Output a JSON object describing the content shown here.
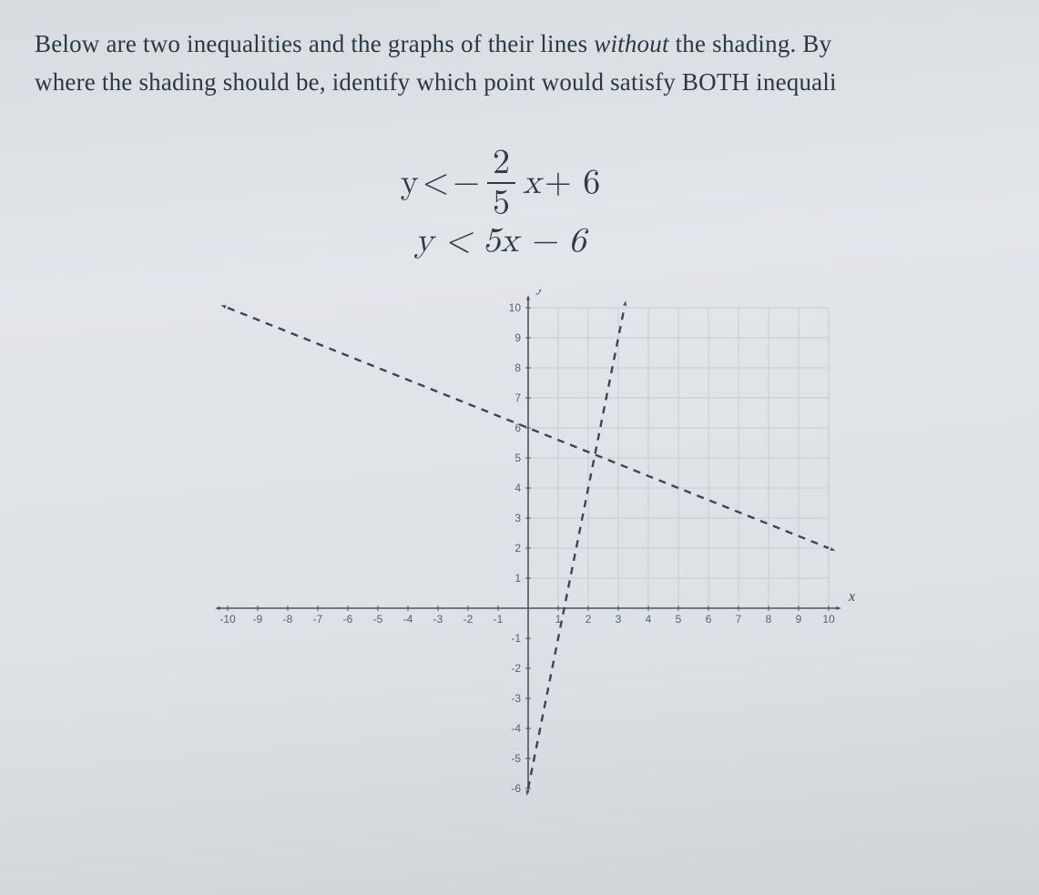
{
  "question": {
    "line1_pre": "Below are two inequalities and the graphs of their lines ",
    "line1_italic": "without",
    "line1_post": " the shading. By",
    "line2": "where the shading should be, identify which point would satisfy BOTH inequali"
  },
  "equations": {
    "eq1": {
      "lhs": "y",
      "op": "<",
      "neg": "−",
      "frac_num": "2",
      "frac_den": "5",
      "var": "x",
      "plus": "+ 6"
    },
    "eq2": {
      "text": "y < 5x − 6"
    }
  },
  "chart": {
    "type": "line-inequality-graph",
    "x_axis_label": "x",
    "y_axis_label": "y",
    "xlim": [
      -10,
      10
    ],
    "ylim": [
      -6,
      10
    ],
    "xtick_step": 1,
    "ytick_step": 1,
    "background_color": "#e2e5e9",
    "grid_color": "#c8cdd3",
    "axis_color": "#4a545e",
    "line_color": "#3a4752",
    "line_width": 2.4,
    "dash_pattern": "8 7",
    "tick_fontsize": 12,
    "axis_label_fontsize": 16,
    "x_tick_labels": [
      "-10",
      "-9",
      "-8",
      "-7",
      "-6",
      "-5",
      "-4",
      "-3",
      "-2",
      "-1",
      "",
      "1",
      "2",
      "3",
      "4",
      "5",
      "6",
      "7",
      "8",
      "9",
      "10"
    ],
    "y_tick_labels_pos": [
      "1",
      "2",
      "3",
      "4",
      "5",
      "6",
      "7",
      "8",
      "9",
      "10"
    ],
    "y_tick_labels_neg": [
      "-1",
      "-2",
      "-3",
      "-4",
      "-5",
      "-6"
    ],
    "lines": [
      {
        "name": "line-neg-2-5x-plus-6",
        "slope": -0.4,
        "intercept": 6,
        "x0": -10,
        "x1": 10
      },
      {
        "name": "line-5x-minus-6",
        "slope": 5,
        "intercept": -6,
        "x0": 0,
        "x1": 3.2
      }
    ]
  }
}
